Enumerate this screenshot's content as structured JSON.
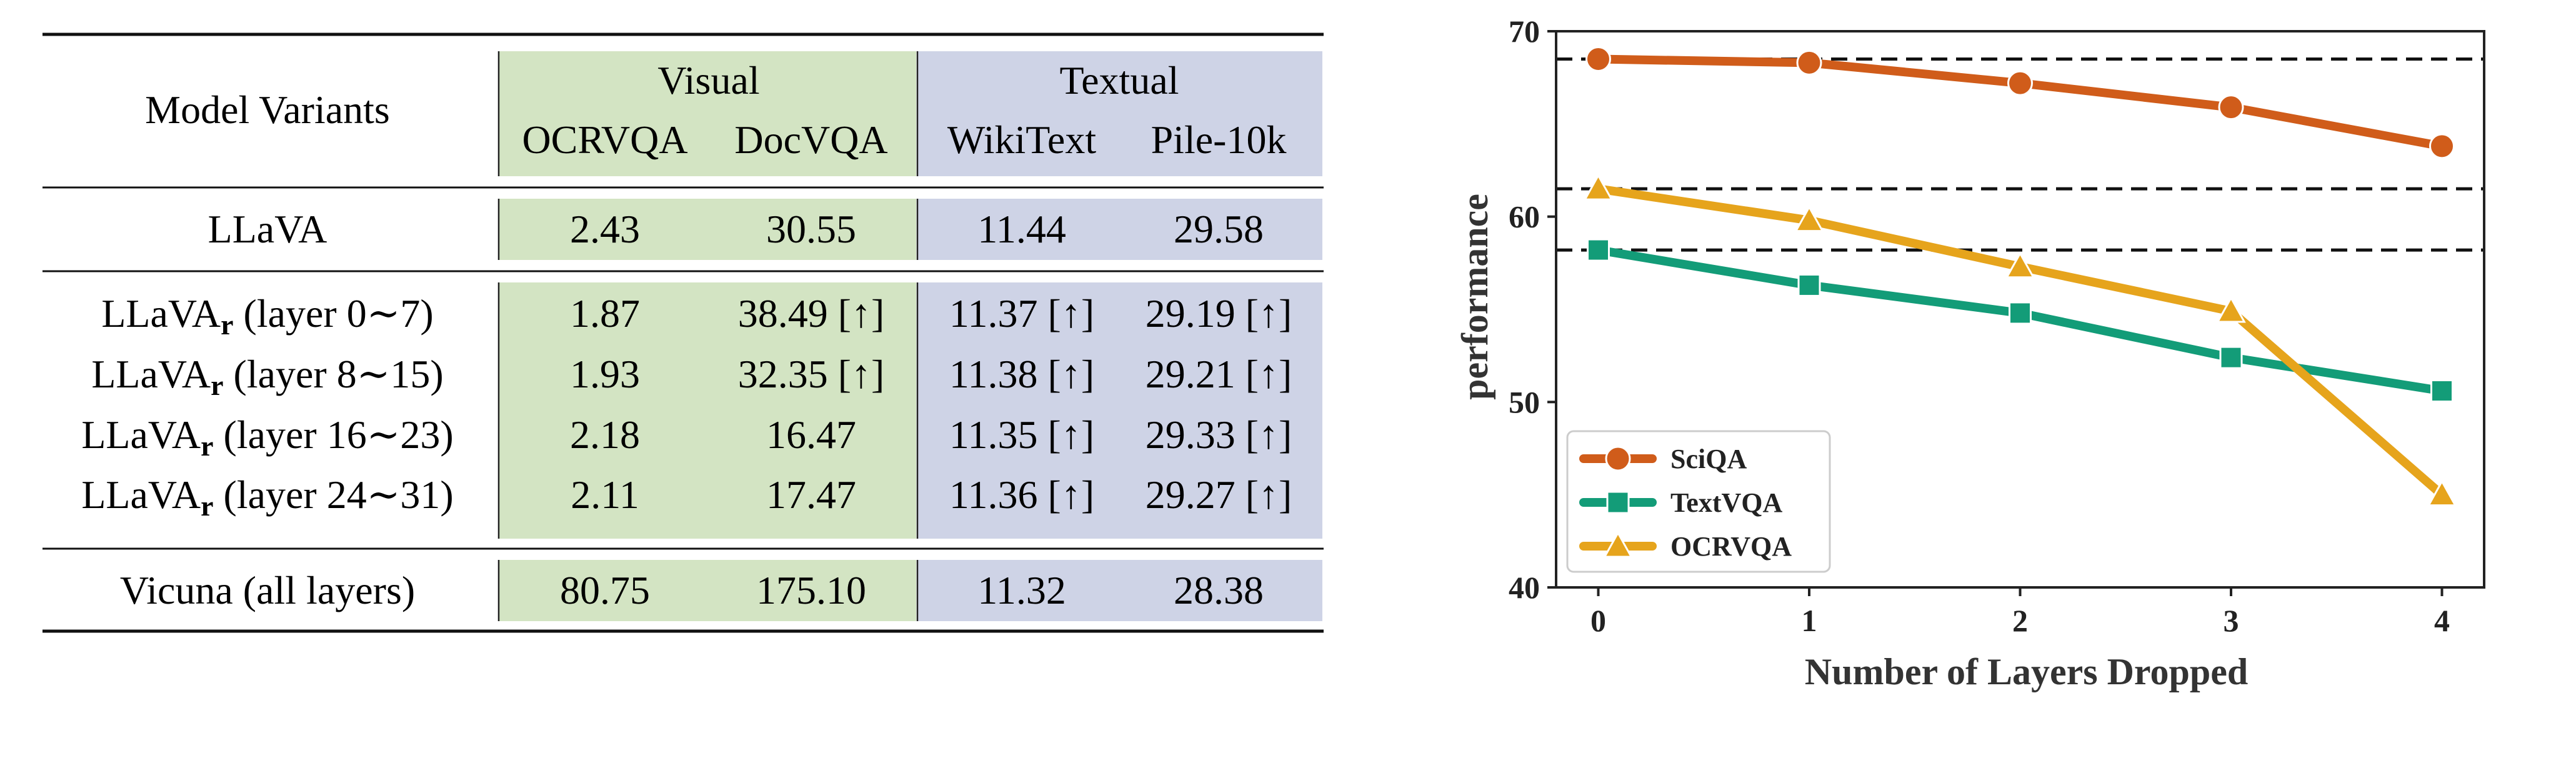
{
  "table": {
    "corner_header": "Model Variants",
    "groups": [
      {
        "label": "Visual",
        "color": "#d3e4c3"
      },
      {
        "label": "Textual",
        "color": "#ced3e6"
      }
    ],
    "columns": [
      "OCRVQA",
      "DocVQA",
      "WikiText",
      "Pile-10k"
    ],
    "rows": [
      {
        "name": "LLaVA",
        "sub": "",
        "suffix": "",
        "values": [
          "2.43",
          "30.55",
          "11.44",
          "29.58"
        ]
      },
      {
        "name": "LLaVA",
        "sub": "r",
        "suffix": " (layer 0∼7)",
        "values": [
          "1.87",
          "38.49 [↑]",
          "11.37 [↑]",
          "29.19 [↑]"
        ]
      },
      {
        "name": "LLaVA",
        "sub": "r",
        "suffix": " (layer 8∼15)",
        "values": [
          "1.93",
          "32.35 [↑]",
          "11.38 [↑]",
          "29.21 [↑]"
        ]
      },
      {
        "name": "LLaVA",
        "sub": "r",
        "suffix": " (layer 16∼23)",
        "values": [
          "2.18",
          "16.47",
          "11.35 [↑]",
          "29.33 [↑]"
        ]
      },
      {
        "name": "LLaVA",
        "sub": "r",
        "suffix": " (layer 24∼31)",
        "values": [
          "2.11",
          "17.47",
          "11.36 [↑]",
          "29.27 [↑]"
        ]
      },
      {
        "name": "Vicuna (all layers)",
        "sub": "",
        "suffix": "",
        "values": [
          "80.75",
          "175.10",
          "11.32",
          "28.38"
        ]
      }
    ]
  },
  "chart_data": {
    "type": "line",
    "title": "",
    "xlabel": "Number of Layers Dropped",
    "ylabel": "performance",
    "x": [
      0,
      1,
      2,
      3,
      4
    ],
    "xlim": [
      -0.2,
      4.2
    ],
    "ylim": [
      40,
      70
    ],
    "yticks": [
      40,
      50,
      60,
      70
    ],
    "grid": false,
    "legend_position": "lower-left",
    "reference_lines": [
      68.5,
      61.5,
      58.2
    ],
    "series": [
      {
        "name": "SciQA",
        "values": [
          68.5,
          68.3,
          67.2,
          65.9,
          63.8
        ],
        "color": "#d05c1a",
        "marker": "circle"
      },
      {
        "name": "TextVQA",
        "values": [
          58.2,
          56.3,
          54.8,
          52.4,
          50.6
        ],
        "color": "#139c78",
        "marker": "square"
      },
      {
        "name": "OCRVQA",
        "values": [
          61.5,
          59.8,
          57.3,
          54.9,
          45.0
        ],
        "color": "#e6a41c",
        "marker": "triangle"
      }
    ]
  }
}
